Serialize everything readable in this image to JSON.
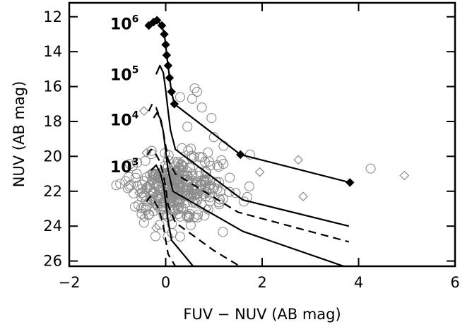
{
  "chart_data": {
    "type": "scatter",
    "xlabel": "FUV − NUV (AB mag)",
    "ylabel": "NUV (AB mag)",
    "xlim": [
      -2,
      6
    ],
    "ylim": [
      26.3,
      11.2
    ],
    "y_inverted": true,
    "x_ticks": [
      -2,
      0,
      2,
      4,
      6
    ],
    "x_tick_labels": [
      "−2",
      "0",
      "2",
      "4",
      "6"
    ],
    "y_ticks": [
      12,
      14,
      16,
      18,
      20,
      22,
      24,
      26
    ],
    "y_tick_labels": [
      "12",
      "14",
      "16",
      "18",
      "20",
      "22",
      "24",
      "26"
    ],
    "grid": false,
    "mass_labels": [
      {
        "base": "10",
        "exp": "6",
        "x": -1.15,
        "y": 12.4
      },
      {
        "base": "10",
        "exp": "5",
        "x": -1.15,
        "y": 15.3
      },
      {
        "base": "10",
        "exp": "4",
        "x": -1.15,
        "y": 17.9
      },
      {
        "base": "10",
        "exp": "3",
        "x": -1.15,
        "y": 20.6
      }
    ],
    "series": [
      {
        "kind": "track-solid",
        "x": [
          -0.35,
          -0.25,
          -0.18,
          -0.08,
          -0.03,
          0.0,
          0.02,
          0.05,
          0.08,
          0.12,
          0.18,
          1.55,
          3.82
        ],
        "y": [
          12.5,
          12.3,
          12.2,
          12.5,
          13.0,
          13.6,
          14.2,
          14.8,
          15.5,
          16.3,
          17.0,
          19.9,
          21.5
        ],
        "markers": "filled-diamond"
      },
      {
        "kind": "track-solid",
        "x": [
          -0.2,
          -0.12,
          -0.05,
          0.0,
          0.05,
          0.1,
          0.2,
          1.6,
          3.8
        ],
        "y": [
          15.3,
          14.8,
          15.2,
          16.2,
          17.4,
          18.5,
          19.6,
          22.5,
          24.0
        ]
      },
      {
        "kind": "track-solid",
        "x": [
          -0.25,
          -0.18,
          -0.1,
          -0.05,
          0.0,
          0.05,
          0.15,
          1.6,
          3.8
        ],
        "y": [
          17.8,
          17.5,
          17.9,
          18.6,
          19.7,
          20.8,
          22.0,
          24.3,
          26.4
        ]
      },
      {
        "kind": "track-solid",
        "x": [
          -0.3,
          -0.2,
          -0.12,
          -0.05,
          0.0,
          0.05,
          0.12,
          0.6
        ],
        "y": [
          20.8,
          20.5,
          20.9,
          21.6,
          22.6,
          23.7,
          24.8,
          26.4
        ]
      },
      {
        "kind": "track-dashed",
        "x": [
          -0.35,
          -0.28,
          -0.2,
          -0.12,
          -0.05,
          0.0,
          0.05,
          0.2,
          1.5,
          3.8
        ],
        "y": [
          17.4,
          17.0,
          17.2,
          17.8,
          18.6,
          19.4,
          20.2,
          21.0,
          23.2,
          24.9
        ]
      },
      {
        "kind": "track-dashed",
        "x": [
          -0.38,
          -0.3,
          -0.22,
          -0.12,
          -0.05,
          0.0,
          0.05,
          0.2,
          1.0,
          1.6
        ],
        "y": [
          19.9,
          19.6,
          19.8,
          20.3,
          21.0,
          21.8,
          22.8,
          23.8,
          25.4,
          26.4
        ]
      },
      {
        "kind": "track-dashed",
        "x": [
          -0.4,
          -0.32,
          -0.25,
          -0.15,
          -0.06,
          0.0,
          0.05,
          0.2
        ],
        "y": [
          22.6,
          22.3,
          22.5,
          23.0,
          23.8,
          24.8,
          25.6,
          26.3
        ]
      },
      {
        "kind": "open-diamond",
        "x": [
          -0.45,
          1.95,
          2.75,
          2.85,
          4.95,
          -0.55,
          -0.45,
          -0.4,
          -0.2,
          0.55,
          0.85
        ],
        "y": [
          17.4,
          20.9,
          20.2,
          22.3,
          21.1,
          22.1,
          23.5,
          19.8,
          24.1,
          22.0,
          23.0
        ]
      },
      {
        "kind": "open-circle",
        "seed": 7,
        "n": 330,
        "center": [
          0.25,
          21.8
        ],
        "spread": [
          0.55,
          1.2
        ],
        "x_extra": [
          0.6,
          0.65,
          0.55,
          0.3,
          0.75,
          0.95,
          1.0,
          1.2,
          1.45,
          1.75,
          4.25,
          0.3,
          -0.45,
          -0.5,
          -0.6,
          0.9,
          1.1,
          0.45,
          0.8
        ],
        "y_extra": [
          16.1,
          16.3,
          16.7,
          16.6,
          17.2,
          17.8,
          18.9,
          19.4,
          22.1,
          19.9,
          20.7,
          24.6,
          23.8,
          23.3,
          21.0,
          20.3,
          20.6,
          18.3,
          21.4
        ]
      }
    ]
  }
}
